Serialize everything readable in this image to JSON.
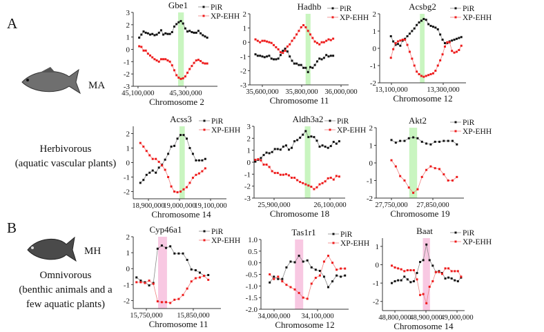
{
  "left": {
    "A": {
      "letter": "A",
      "code": "MA",
      "diet_line1": "Herbivorous",
      "diet_line2": "(aquatic vascular plants)"
    },
    "B": {
      "letter": "B",
      "code": "MH",
      "diet_line1": "Omnivorous",
      "diet_line2": "(benthic animals and a",
      "diet_line3": "few aquatic plants)"
    }
  },
  "legend": {
    "pir": "PiR",
    "xpehh": "XP-EHH"
  },
  "colors": {
    "pir": "#111111",
    "pir_line": "#888888",
    "xpehh": "#ee1c1c",
    "xpehh_line": "#f08080",
    "highlight_A": "#c9f5c0",
    "highlight_B": "#f8c8e2"
  },
  "chart_data": [
    {
      "type": "line",
      "title": "Gbe1",
      "xlabel": "Chromosome 2",
      "group": "A",
      "ylim": [
        -3,
        3
      ],
      "yticks": [
        -3,
        -2,
        -1,
        0,
        1,
        2,
        3
      ],
      "xlim": [
        45080000,
        45433000
      ],
      "xticks": [
        45100000,
        45300000
      ],
      "x_range": [
        45105000,
        45390000
      ],
      "highlight": [
        45268000,
        45292000
      ],
      "series": [
        {
          "name": "PiR",
          "values": [
            0.95,
            1.2,
            1.45,
            1.35,
            1.3,
            1.2,
            1.25,
            1.15,
            1.2,
            1.35,
            1.55,
            1.2,
            1.3,
            1.25,
            1.25,
            1.4,
            1.85,
            2.05,
            2.2,
            2.3,
            2.1,
            1.7,
            1.45,
            1.5,
            1.4,
            1.35,
            1.35,
            1.5,
            1.3,
            1.15,
            1.05,
            0.95
          ]
        },
        {
          "name": "XP-EHH",
          "values": [
            0.25,
            0.2,
            -0.1,
            -0.1,
            -0.35,
            -0.5,
            -0.65,
            -0.8,
            -0.9,
            -1.0,
            -0.8,
            -0.8,
            -0.8,
            -0.9,
            -1.0,
            -1.3,
            -1.7,
            -2.1,
            -2.3,
            -2.4,
            -2.35,
            -2.2,
            -1.9,
            -1.6,
            -1.35,
            -1.1,
            -0.9,
            -0.85,
            -0.95,
            -1.1,
            -1.15,
            -1.15
          ]
        }
      ]
    },
    {
      "type": "line",
      "title": "Hadhb",
      "xlabel": "Chromosome 11",
      "group": "A",
      "ylim": [
        -3,
        2
      ],
      "yticks": [
        -3,
        -2,
        -1,
        0,
        1,
        2
      ],
      "xlim": [
        35536800,
        36038600
      ],
      "xticks": [
        35600000,
        35800000,
        36000000
      ],
      "x_range": [
        35565000,
        35960000
      ],
      "highlight": [
        35820000,
        35845000
      ],
      "series": [
        {
          "name": "PiR",
          "values": [
            -0.85,
            -0.95,
            -0.95,
            -1.0,
            -1.05,
            -1.0,
            -0.95,
            -1.15,
            -1.2,
            -1.2,
            -1.15,
            -0.9,
            -0.6,
            -0.45,
            -0.65,
            -1.0,
            -1.3,
            -1.5,
            -1.5,
            -1.6,
            -1.6,
            -1.8,
            -1.8,
            -2.1,
            -1.75,
            -1.8,
            -1.6,
            -1.35,
            -1.15,
            -1.2,
            -1.1,
            -0.9,
            -1.0,
            -0.95,
            -0.95
          ]
        },
        {
          "name": "XP-EHH",
          "values": [
            0.2,
            0.1,
            0.0,
            0.1,
            0.1,
            0.05,
            0.0,
            -0.05,
            -0.2,
            -0.35,
            -0.5,
            -0.7,
            -0.75,
            -0.6,
            -0.3,
            -0.15,
            0.1,
            0.3,
            0.55,
            0.8,
            1.05,
            1.2,
            1.05,
            0.8,
            0.55,
            0.3,
            0.05,
            -0.05,
            -0.15,
            0.0,
            0.0,
            0.1,
            0.2,
            0.15,
            0.25
          ]
        }
      ]
    },
    {
      "type": "line",
      "title": "Acsbg2",
      "xlabel": "Chromosome 12",
      "group": "A",
      "ylim": [
        -2,
        2
      ],
      "yticks": [
        -2,
        -1,
        0,
        1,
        2
      ],
      "xlim": [
        13054700,
        13388000
      ],
      "xticks": [
        13100000,
        13300000
      ],
      "x_range": [
        13098000,
        13370000
      ],
      "highlight": [
        13210000,
        13228000
      ],
      "series": [
        {
          "name": "PiR",
          "values": [
            0.7,
            0.4,
            0.2,
            0.25,
            0.15,
            0.45,
            0.55,
            0.7,
            0.85,
            1.0,
            1.15,
            1.35,
            1.5,
            1.6,
            1.7,
            1.65,
            1.4,
            1.3,
            1.25,
            1.2,
            1.1,
            0.8,
            0.5,
            0.3,
            0.3,
            0.4,
            0.45,
            0.5,
            0.55,
            0.6,
            0.65
          ]
        },
        {
          "name": "XP-EHH",
          "values": [
            -0.55,
            -0.05,
            0.3,
            0.4,
            0.45,
            0.5,
            0.5,
            0.2,
            -0.2,
            -0.6,
            -1.0,
            -1.35,
            -1.5,
            -1.6,
            -1.65,
            -1.6,
            -1.55,
            -1.5,
            -1.45,
            -1.3,
            -1.0,
            -0.7,
            -0.35,
            0.1,
            0.35,
            0.35,
            -0.15,
            -0.25,
            -0.2,
            -0.1,
            0.15
          ]
        }
      ]
    },
    {
      "type": "line",
      "title": "Acss3",
      "xlabel": "Chromosome 14",
      "group": "A",
      "ylim": [
        -2.5,
        2.5
      ],
      "yticks": [
        -2,
        -1,
        0,
        1,
        2
      ],
      "xlim": [
        18851100,
        19151100
      ],
      "xticks": [
        18900000,
        19000000,
        19100000
      ],
      "x_range": [
        18874000,
        19083000
      ],
      "highlight": [
        19000000,
        19017000
      ],
      "series": [
        {
          "name": "PiR",
          "values": [
            -1.4,
            -1.2,
            -0.85,
            -0.7,
            -0.55,
            -0.7,
            -0.35,
            -0.15,
            0.2,
            0.6,
            1.1,
            1.15,
            1.65,
            1.9,
            1.9,
            1.65,
            1.0,
            0.6,
            0.15,
            0.15,
            0.15,
            0.25
          ]
        },
        {
          "name": "XP-EHH",
          "values": [
            1.35,
            1.1,
            0.8,
            0.5,
            0.25,
            0.25,
            0.05,
            -0.2,
            -0.5,
            -1.0,
            -1.65,
            -2.0,
            -2.05,
            -2.0,
            -1.85,
            -1.7,
            -1.4,
            -1.05,
            -0.85,
            -0.75,
            -0.6,
            -0.4
          ]
        }
      ]
    },
    {
      "type": "line",
      "title": "Aldh3a2",
      "xlabel": "Chromosome 18",
      "group": "A",
      "ylim": [
        -3,
        3
      ],
      "yticks": [
        -3,
        -2,
        -1,
        0,
        1,
        2,
        3
      ],
      "xlim": [
        25828400,
        26154300
      ],
      "xticks": [
        25900000,
        26100000
      ],
      "x_range": [
        25833000,
        26133000
      ],
      "highlight": [
        26010000,
        26030000
      ],
      "series": [
        {
          "name": "PiR",
          "values": [
            0.05,
            0.2,
            0.35,
            0.6,
            0.8,
            0.75,
            0.85,
            1.1,
            1.1,
            1.05,
            1.3,
            1.4,
            1.05,
            1.2,
            1.75,
            1.85,
            2.05,
            2.3,
            2.6,
            2.1,
            2.15,
            2.1,
            1.8,
            1.3,
            1.4,
            1.3,
            1.2,
            1.35,
            1.7,
            1.55,
            1.75
          ]
        },
        {
          "name": "XP-EHH",
          "values": [
            0.2,
            0.25,
            0.15,
            -0.2,
            -0.2,
            -0.4,
            -0.75,
            -0.9,
            -0.9,
            -1.05,
            -1.05,
            -1.0,
            -1.1,
            -1.3,
            -1.3,
            -1.5,
            -1.65,
            -1.75,
            -1.85,
            -1.95,
            -2.05,
            -2.25,
            -2.1,
            -1.85,
            -1.75,
            -1.6,
            -1.35,
            -1.3,
            -1.45,
            -1.15,
            -1.2
          ]
        }
      ]
    },
    {
      "type": "line",
      "title": "Akt2",
      "xlabel": "Chromosome 19",
      "group": "A",
      "ylim": [
        -2,
        2
      ],
      "yticks": [
        -2,
        -1,
        0,
        1,
        2
      ],
      "xlim": [
        27713300,
        27925000
      ],
      "xticks": [
        27750000,
        27850000
      ],
      "x_range": [
        27750000,
        27908000
      ],
      "highlight": [
        27793000,
        27812000
      ],
      "series": [
        {
          "name": "PiR",
          "values": [
            1.3,
            1.15,
            1.25,
            1.25,
            1.4,
            1.45,
            1.4,
            1.2,
            1.1,
            1.05,
            1.2,
            1.2,
            1.25,
            1.25,
            1.25,
            1.05
          ]
        },
        {
          "name": "XP-EHH",
          "values": [
            0.15,
            -0.2,
            -0.75,
            -1.0,
            -1.4,
            -1.7,
            -1.5,
            -0.8,
            -0.4,
            -0.2,
            -0.3,
            -0.35,
            -0.65,
            -1.0,
            -1.0,
            -0.8
          ]
        }
      ]
    },
    {
      "type": "line",
      "title": "Cyp46a1",
      "xlabel": "Chromosome 11",
      "group": "B",
      "ylim": [
        -2.5,
        2
      ],
      "yticks": [
        -2,
        -1,
        0,
        1,
        2
      ],
      "xlim": [
        15722050,
        15908900
      ],
      "xticks": [
        15750000,
        15850000
      ],
      "x_range": [
        15729000,
        15882000
      ],
      "highlight": [
        15775000,
        15794000
      ],
      "series": [
        {
          "name": "PiR",
          "values": [
            -0.55,
            -0.75,
            -0.85,
            -1.05,
            -0.9,
            1.25,
            1.45,
            1.3,
            1.4,
            0.95,
            0.95,
            0.95,
            0.55,
            -0.05,
            -0.1,
            -0.25,
            -0.45,
            -0.4
          ]
        },
        {
          "name": "XP-EHH",
          "values": [
            -0.85,
            -0.85,
            -0.9,
            -0.75,
            -0.95,
            -2.05,
            -2.1,
            -2.1,
            -2.15,
            -1.95,
            -1.9,
            -1.65,
            -1.25,
            -0.8,
            -0.6,
            -0.55,
            -0.45,
            -0.7
          ]
        }
      ]
    },
    {
      "type": "line",
      "title": "Tas1r1",
      "xlabel": "Chromosome 12",
      "group": "B",
      "ylim": [
        -2,
        1
      ],
      "yticks": [
        -2.0,
        -1.5,
        -1.0,
        -0.5,
        0.0,
        0.5,
        1.0
      ],
      "ytick_decimals": 1,
      "xlim": [
        33969850,
        34171400
      ],
      "xticks": [
        34000000,
        34100000
      ],
      "x_range": [
        33990000,
        34163000
      ],
      "highlight": [
        34048000,
        34067000
      ],
      "series": [
        {
          "name": "PiR",
          "values": [
            -0.85,
            -0.6,
            -0.7,
            -0.7,
            -0.2,
            0.05,
            0.02,
            0.3,
            0.05,
            0.1,
            -0.2,
            -0.3,
            -0.35,
            -0.6,
            -1.05,
            -0.8,
            -0.55,
            -0.6,
            -0.55
          ]
        },
        {
          "name": "XP-EHH",
          "values": [
            -0.5,
            -0.7,
            -0.6,
            -0.8,
            -0.95,
            -1.05,
            -1.15,
            -1.3,
            -1.5,
            -1.55,
            -0.9,
            -0.65,
            -0.55,
            0.05,
            0.3,
            0.0,
            -0.3,
            -0.25,
            -0.25
          ]
        }
      ]
    },
    {
      "type": "line",
      "title": "Baat",
      "xlabel": "Chromosome 14",
      "group": "B",
      "ylim": [
        -2.5,
        1.45
      ],
      "yticks": [
        -2,
        -1,
        0,
        1
      ],
      "xlim": [
        48760000,
        49024400
      ],
      "xticks": [
        48800000,
        48900000,
        49000000
      ],
      "x_range": [
        48790000,
        49013000
      ],
      "highlight": [
        48890000,
        48913000
      ],
      "series": [
        {
          "name": "PiR",
          "values": [
            -1.0,
            -0.9,
            -0.85,
            -0.85,
            -0.65,
            -0.8,
            -0.95,
            -0.9,
            -0.45,
            0.15,
            0.25,
            1.1,
            0.25,
            -0.05,
            -0.4,
            -0.35,
            -0.45,
            -0.75,
            -0.7,
            -0.75,
            -0.85,
            -0.9,
            -0.7
          ]
        },
        {
          "name": "XP-EHH",
          "values": [
            -0.05,
            -0.15,
            -0.2,
            -0.25,
            -0.35,
            -0.3,
            -0.3,
            -0.3,
            -0.8,
            -1.65,
            -1.6,
            -2.1,
            -1.2,
            -0.9,
            -0.4,
            -0.4,
            -0.5,
            -0.2,
            -0.2,
            -0.35,
            -0.35,
            -0.35,
            -0.65
          ]
        }
      ]
    }
  ]
}
